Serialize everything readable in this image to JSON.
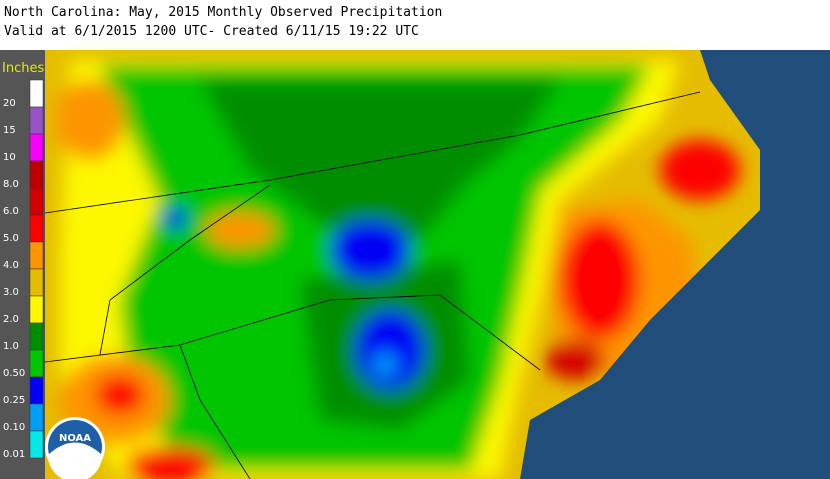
{
  "header": {
    "title": "North Carolina: May, 2015 Monthly Observed Precipitation",
    "subtitle": "Valid at 6/1/2015 1200 UTC- Created 6/11/15 19:22 UTC"
  },
  "legend": {
    "unit": "Inches",
    "entries": [
      {
        "label": "20",
        "color": "#fdfdfd"
      },
      {
        "label": "15",
        "color": "#9854c6"
      },
      {
        "label": "10",
        "color": "#f800fd"
      },
      {
        "label": "8.0",
        "color": "#bc0000"
      },
      {
        "label": "6.0",
        "color": "#d40000"
      },
      {
        "label": "5.0",
        "color": "#fd0000"
      },
      {
        "label": "4.0",
        "color": "#fd9500"
      },
      {
        "label": "3.0",
        "color": "#e5bc00"
      },
      {
        "label": "2.0",
        "color": "#fdf802"
      },
      {
        "label": "1.0",
        "color": "#008e00"
      },
      {
        "label": "0.50",
        "color": "#01c501"
      },
      {
        "label": "0.25",
        "color": "#0300f4"
      },
      {
        "label": "0.10",
        "color": "#019ff4"
      },
      {
        "label": "0.01",
        "color": "#04e9e7"
      }
    ]
  },
  "logo": {
    "text": "NOAA"
  }
}
